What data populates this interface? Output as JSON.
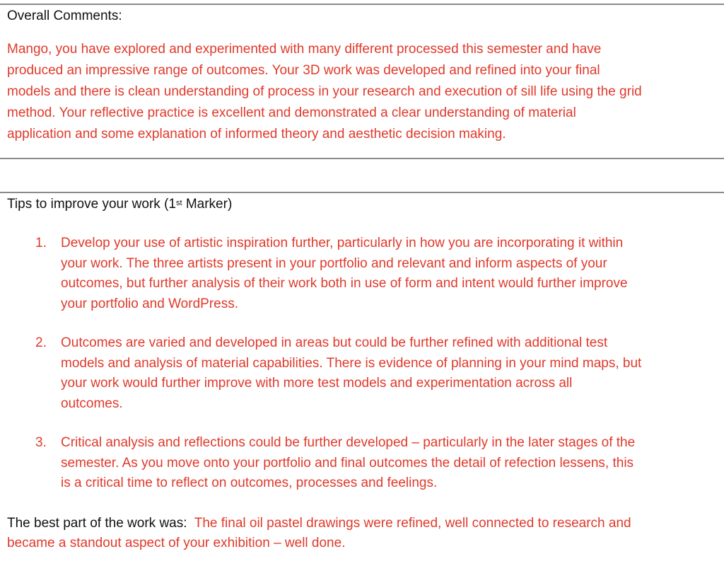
{
  "overall": {
    "heading": "Overall Comments:",
    "lines": [
      "Mango, you have explored and experimented with many different processed this semester and have",
      "produced an impressive range of outcomes. Your 3D work was developed and refined into your final",
      "models and there is clean understanding of process in your research and execution of sill life using the grid",
      "method. Your reflective practice is excellent and demonstrated a clear understanding of material",
      "application and some explanation of informed theory and aesthetic decision making."
    ]
  },
  "tips": {
    "heading_pre": "Tips to improve your work (1",
    "heading_sup": "st",
    "heading_post": " Marker)",
    "items": [
      {
        "num": "1.",
        "lines": [
          "Develop your use of artistic inspiration further, particularly in how you are incorporating it within",
          "your work. The three artists present in your portfolio and relevant and inform aspects of your",
          "outcomes, but further analysis of their work both in use of form and intent would further improve",
          "your portfolio and WordPress."
        ]
      },
      {
        "num": "2.",
        "lines": [
          "Outcomes are varied and developed in areas but could be further refined with additional test",
          "models and analysis of material capabilities. There is evidence of planning in your mind maps, but",
          "your work would further improve with more test models and experimentation across all",
          "outcomes."
        ]
      },
      {
        "num": "3.",
        "lines": [
          "Critical analysis and reflections could be further developed – particularly in the later stages of the",
          "semester. As you move onto your portfolio and final outcomes the detail of refection lessens, this",
          "is a critical time to reflect on outcomes, processes and feelings."
        ]
      }
    ]
  },
  "best": {
    "label": "The best part of the work was:",
    "line1": "The final oil pastel drawings were refined, well connected to research and",
    "line2": "became a standout aspect of your exhibition – well done."
  },
  "colors": {
    "comment_text": "#e0392b",
    "heading_text": "#111111",
    "rule": "#8a8a8a"
  }
}
